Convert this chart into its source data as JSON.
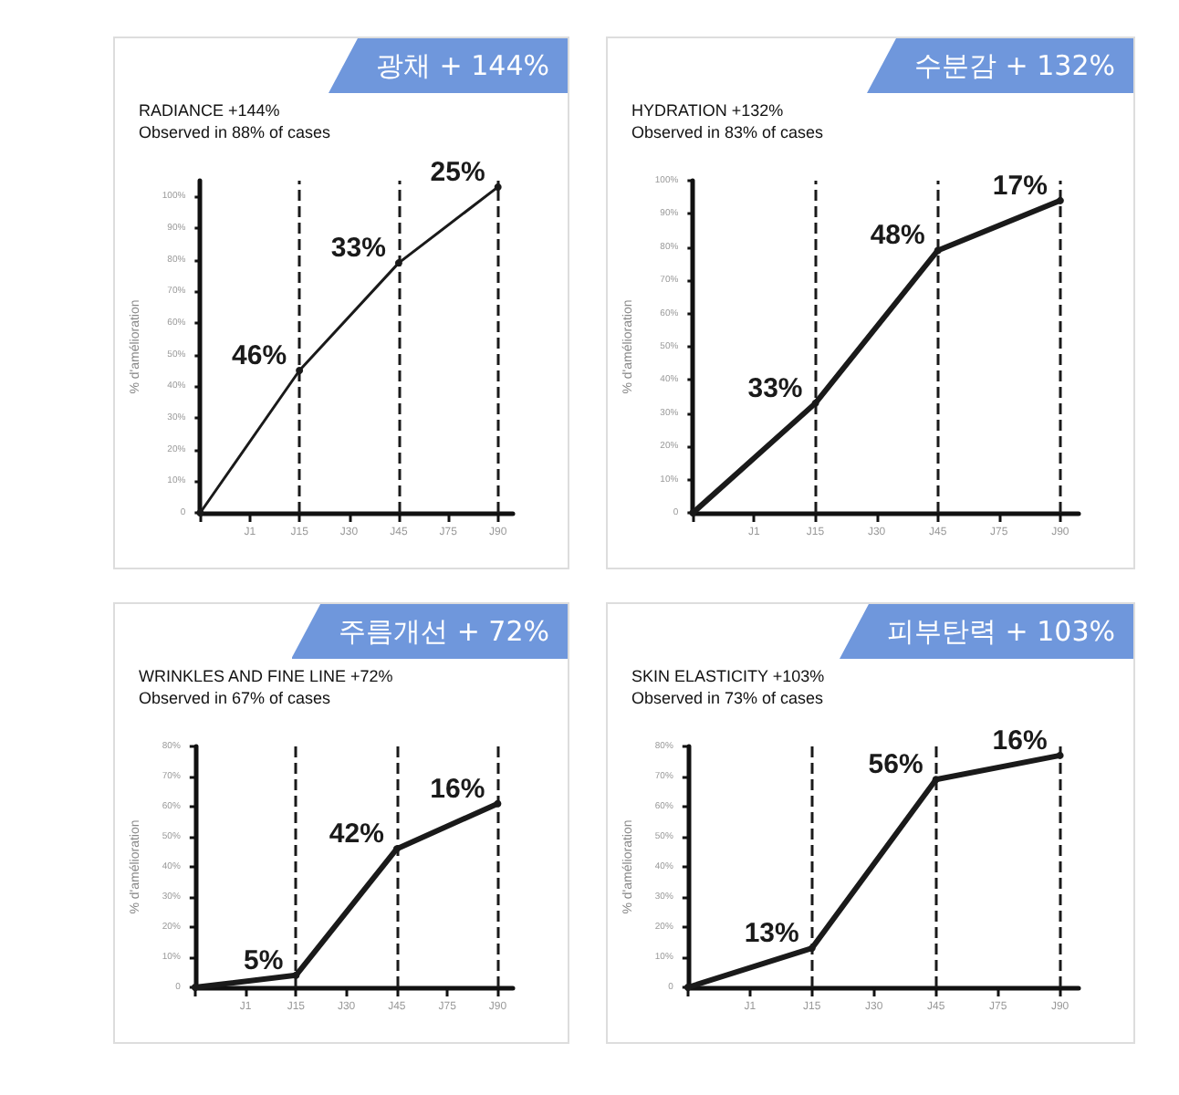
{
  "chart_data": [
    {
      "type": "line",
      "title": "RADIANCE +144%",
      "subtitle": "Observed in 88% of cases",
      "ylabel": "% d'amélioration",
      "categories": [
        null,
        "J1",
        "J15",
        "J30",
        "J45",
        "J75",
        "J90"
      ],
      "series": [
        {
          "color": "#1a1a1a",
          "values": [
            0,
            null,
            45,
            null,
            79,
            null,
            103
          ]
        }
      ],
      "ylim": [
        0,
        105
      ],
      "yticks": [
        {
          "value": 0,
          "label": "0"
        },
        {
          "value": 10,
          "label": "10%"
        },
        {
          "value": 20,
          "label": "20%"
        },
        {
          "value": 30,
          "label": "30%"
        },
        {
          "value": 40,
          "label": "40%"
        },
        {
          "value": 50,
          "label": "50%"
        },
        {
          "value": 60,
          "label": "60%"
        },
        {
          "value": 70,
          "label": "70%"
        },
        {
          "value": 80,
          "label": "80%"
        },
        {
          "value": 90,
          "label": "90%"
        },
        {
          "value": 100,
          "label": "100%"
        }
      ],
      "ref_lines": [
        {
          "axis": "x",
          "value": "J15",
          "line_style": "dashed",
          "color": "#1a1a1a"
        },
        {
          "axis": "x",
          "value": "J45",
          "line_style": "dashed",
          "color": "#1a1a1a"
        },
        {
          "axis": "x",
          "value": "J90",
          "line_style": "dashed",
          "color": "#1a1a1a"
        }
      ],
      "annotations": [
        "광채 + 144%",
        {
          "text": "46%",
          "x": "J15",
          "y": 45
        },
        {
          "text": "33%",
          "x": "J45",
          "y": 79
        },
        {
          "text": "25%",
          "x": "J90",
          "y": 103
        }
      ],
      "marker": "circle",
      "grid": false
    },
    {
      "type": "line",
      "title": "HYDRATION +132%",
      "subtitle": "Observed in 83% of cases",
      "ylabel": "% d'amélioration",
      "categories": [
        null,
        "J1",
        "J15",
        "J30",
        "J45",
        "J75",
        "J90"
      ],
      "series": [
        {
          "color": "#1a1a1a",
          "values": [
            0,
            null,
            33,
            null,
            79,
            null,
            94
          ]
        }
      ],
      "ylim": [
        0,
        100
      ],
      "yticks": [
        {
          "value": 0,
          "label": "0"
        },
        {
          "value": 10,
          "label": "10%"
        },
        {
          "value": 20,
          "label": "20%"
        },
        {
          "value": 30,
          "label": "30%"
        },
        {
          "value": 40,
          "label": "40%"
        },
        {
          "value": 50,
          "label": "50%"
        },
        {
          "value": 60,
          "label": "60%"
        },
        {
          "value": 70,
          "label": "70%"
        },
        {
          "value": 80,
          "label": "80%"
        },
        {
          "value": 90,
          "label": "90%"
        },
        {
          "value": 100,
          "label": "100%"
        }
      ],
      "ref_lines": [
        {
          "axis": "x",
          "value": "J15",
          "line_style": "dashed",
          "color": "#1a1a1a"
        },
        {
          "axis": "x",
          "value": "J45",
          "line_style": "dashed",
          "color": "#1a1a1a"
        },
        {
          "axis": "x",
          "value": "J90",
          "line_style": "dashed",
          "color": "#1a1a1a"
        }
      ],
      "annotations": [
        "수분감 + 132%",
        {
          "text": "33%",
          "x": "J15",
          "y": 33
        },
        {
          "text": "48%",
          "x": "J45",
          "y": 79
        },
        {
          "text": "17%",
          "x": "J90",
          "y": 94
        }
      ],
      "marker": "circle",
      "grid": false
    },
    {
      "type": "line",
      "title": "WRINKLES AND FINE LINE +72%",
      "subtitle": "Observed in 67% of cases",
      "ylabel": "% d'amélioration",
      "categories": [
        null,
        "J1",
        "J15",
        "J30",
        "J45",
        "J75",
        "J90"
      ],
      "series": [
        {
          "color": "#1a1a1a",
          "values": [
            0,
            null,
            4,
            null,
            46,
            null,
            61
          ]
        }
      ],
      "ylim": [
        0,
        80
      ],
      "yticks": [
        {
          "value": 0,
          "label": "0"
        },
        {
          "value": 10,
          "label": "10%"
        },
        {
          "value": 20,
          "label": "20%"
        },
        {
          "value": 30,
          "label": "30%"
        },
        {
          "value": 40,
          "label": "40%"
        },
        {
          "value": 50,
          "label": "50%"
        },
        {
          "value": 60,
          "label": "60%"
        },
        {
          "value": 70,
          "label": "70%"
        },
        {
          "value": 80,
          "label": "80%"
        }
      ],
      "ref_lines": [
        {
          "axis": "x",
          "value": "J15",
          "line_style": "dashed",
          "color": "#1a1a1a"
        },
        {
          "axis": "x",
          "value": "J45",
          "line_style": "dashed",
          "color": "#1a1a1a"
        },
        {
          "axis": "x",
          "value": "J90",
          "line_style": "dashed",
          "color": "#1a1a1a"
        }
      ],
      "annotations": [
        "주름개선 + 72%",
        {
          "text": "5%",
          "x": "J15",
          "y": 4
        },
        {
          "text": "42%",
          "x": "J45",
          "y": 46
        },
        {
          "text": "16%",
          "x": "J90",
          "y": 61
        }
      ],
      "marker": "circle",
      "grid": false
    },
    {
      "type": "line",
      "title": "SKIN ELASTICITY +103%",
      "subtitle": "Observed in 73% of cases",
      "ylabel": "% d'amélioration",
      "categories": [
        null,
        "J1",
        "J15",
        "J30",
        "J45",
        "J75",
        "J90"
      ],
      "series": [
        {
          "color": "#1a1a1a",
          "values": [
            0,
            null,
            13,
            null,
            69,
            null,
            77
          ]
        }
      ],
      "ylim": [
        0,
        80
      ],
      "yticks": [
        {
          "value": 0,
          "label": "0"
        },
        {
          "value": 10,
          "label": "10%"
        },
        {
          "value": 20,
          "label": "20%"
        },
        {
          "value": 30,
          "label": "30%"
        },
        {
          "value": 40,
          "label": "40%"
        },
        {
          "value": 50,
          "label": "50%"
        },
        {
          "value": 60,
          "label": "60%"
        },
        {
          "value": 70,
          "label": "70%"
        },
        {
          "value": 80,
          "label": "80%"
        }
      ],
      "ref_lines": [
        {
          "axis": "x",
          "value": "J15",
          "line_style": "dashed",
          "color": "#1a1a1a"
        },
        {
          "axis": "x",
          "value": "J45",
          "line_style": "dashed",
          "color": "#1a1a1a"
        },
        {
          "axis": "x",
          "value": "J90",
          "line_style": "dashed",
          "color": "#1a1a1a"
        }
      ],
      "annotations": [
        "피부탄력 + 103%",
        {
          "text": "13%",
          "x": "J15",
          "y": 13
        },
        {
          "text": "56%",
          "x": "J45",
          "y": 69
        },
        {
          "text": "16%",
          "x": "J90",
          "y": 77
        }
      ],
      "marker": "circle",
      "grid": false
    }
  ]
}
